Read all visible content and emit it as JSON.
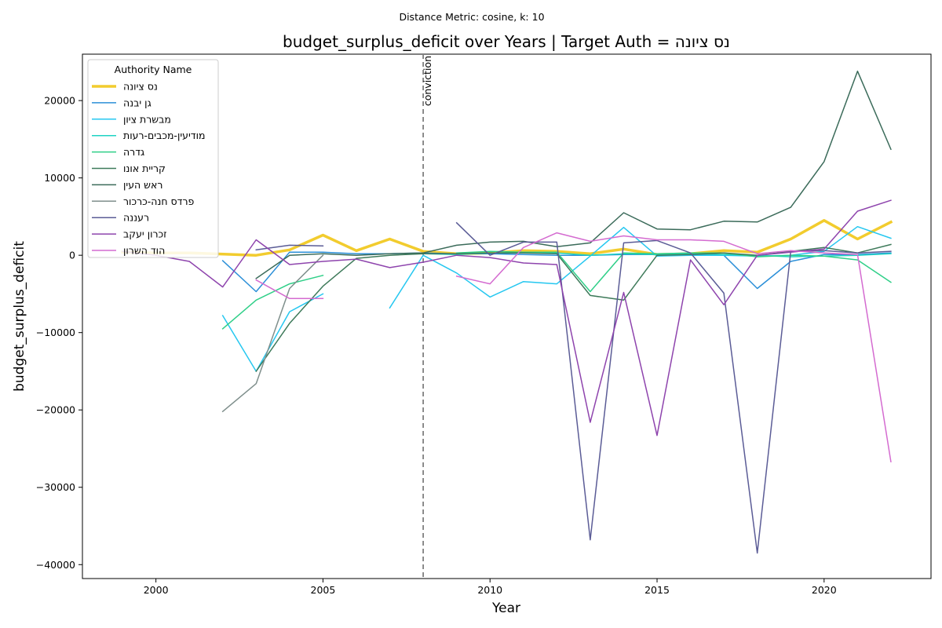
{
  "suptitle": "Distance Metric: cosine, k: 10",
  "chart_data": {
    "type": "line",
    "title": "budget_surplus_deficit over Years | Target Auth = נס ציונה",
    "xlabel": "Year",
    "ylabel": "budget_surplus_deficit",
    "xlim": [
      1997.8,
      2023.2
    ],
    "ylim": [
      -41800,
      26000
    ],
    "xticks": [
      2000,
      2005,
      2010,
      2015,
      2020
    ],
    "yticks": [
      -40000,
      -30000,
      -20000,
      -10000,
      0,
      10000,
      20000
    ],
    "grid": false,
    "legend": {
      "title": "Authority Name",
      "placement": "top-left"
    },
    "annotations": [
      {
        "type": "vline",
        "x": 2008,
        "label": "conviction",
        "style": "dashed",
        "color": "#808080"
      }
    ],
    "series": [
      {
        "name": "נס ציונה",
        "color": "#f2cc2e",
        "width": 3.5,
        "target": true,
        "points": [
          [
            1999,
            400
          ],
          [
            2000,
            300
          ],
          [
            2001,
            300
          ],
          [
            2003,
            0
          ],
          [
            2004,
            700
          ],
          [
            2005,
            2600
          ],
          [
            2006,
            600
          ],
          [
            2007,
            2100
          ],
          [
            2008,
            500
          ],
          [
            2009,
            200
          ],
          [
            2010,
            300
          ],
          [
            2011,
            600
          ],
          [
            2012,
            500
          ],
          [
            2013,
            200
          ],
          [
            2014,
            800
          ],
          [
            2015,
            100
          ],
          [
            2016,
            200
          ],
          [
            2017,
            600
          ],
          [
            2018,
            400
          ],
          [
            2019,
            2100
          ],
          [
            2020,
            4500
          ],
          [
            2021,
            2100
          ],
          [
            2022,
            4300
          ]
        ]
      },
      {
        "name": "גן יבנה",
        "color": "#2b8fd8",
        "width": 1.5,
        "points": [
          [
            2002,
            -700
          ],
          [
            2003,
            -4700
          ],
          [
            2004,
            400
          ],
          [
            2005,
            400
          ],
          [
            2006,
            200
          ],
          [
            2007,
            200
          ],
          [
            2008,
            300
          ],
          [
            2009,
            200
          ],
          [
            2010,
            200
          ],
          [
            2011,
            100
          ],
          [
            2012,
            0
          ],
          [
            2013,
            0
          ],
          [
            2014,
            100
          ],
          [
            2015,
            100
          ],
          [
            2016,
            100
          ],
          [
            2017,
            0
          ],
          [
            2018,
            -4300
          ],
          [
            2019,
            -800
          ],
          [
            2020,
            100
          ],
          [
            2021,
            100
          ],
          [
            2022,
            300
          ]
        ]
      },
      {
        "name": "מבשרת ציון",
        "color": "#25c7f0",
        "width": 1.5,
        "points": [
          [
            2002,
            -7800
          ],
          [
            2003,
            -15000
          ],
          [
            2004,
            -7300
          ],
          [
            2005,
            -5000
          ],
          null,
          [
            2007,
            -6800
          ],
          [
            2008,
            0
          ],
          [
            2009,
            -2300
          ],
          [
            2010,
            -5400
          ],
          [
            2011,
            -3400
          ],
          [
            2012,
            -3700
          ],
          [
            2013,
            -100
          ],
          [
            2014,
            3600
          ],
          [
            2015,
            -100
          ],
          [
            2016,
            0
          ],
          [
            2017,
            0
          ],
          [
            2018,
            -100
          ],
          [
            2019,
            0
          ],
          [
            2020,
            500
          ],
          [
            2021,
            3700
          ],
          [
            2022,
            2200
          ]
        ]
      },
      {
        "name": "מודיעין-מכבים-רעות",
        "color": "#1fd3c4",
        "width": 1.5,
        "points": [
          [
            2008,
            200
          ],
          [
            2009,
            100
          ],
          [
            2010,
            300
          ],
          [
            2011,
            300
          ],
          [
            2012,
            300
          ],
          [
            2013,
            0
          ],
          [
            2014,
            200
          ],
          [
            2015,
            100
          ],
          [
            2016,
            200
          ],
          [
            2017,
            100
          ],
          [
            2018,
            0
          ],
          [
            2019,
            -200
          ],
          [
            2020,
            -100
          ],
          [
            2021,
            0
          ],
          [
            2022,
            200
          ]
        ]
      },
      {
        "name": "גדרה",
        "color": "#2fcf88",
        "width": 1.5,
        "points": [
          [
            2002,
            -9500
          ],
          [
            2003,
            -5800
          ],
          [
            2004,
            -3700
          ],
          [
            2005,
            -2600
          ],
          null,
          [
            2009,
            300
          ],
          [
            2010,
            500
          ],
          [
            2011,
            400
          ],
          [
            2012,
            400
          ],
          [
            2013,
            -4700
          ],
          [
            2014,
            300
          ],
          [
            2015,
            200
          ],
          [
            2016,
            300
          ],
          [
            2017,
            300
          ],
          [
            2018,
            -200
          ],
          [
            2019,
            0
          ],
          [
            2020,
            -100
          ],
          [
            2021,
            -600
          ],
          [
            2022,
            -3500
          ]
        ]
      },
      {
        "name": "קריית אונו",
        "color": "#3e7a5a",
        "width": 1.5,
        "points": [
          [
            2003,
            -15000
          ],
          [
            2004,
            -8800
          ],
          [
            2005,
            -4000
          ],
          [
            2006,
            -400
          ],
          [
            2007,
            0
          ],
          [
            2008,
            200
          ],
          [
            2009,
            200
          ],
          [
            2010,
            300
          ],
          [
            2011,
            300
          ],
          [
            2012,
            200
          ],
          [
            2013,
            -5200
          ],
          [
            2014,
            -5800
          ],
          [
            2015,
            0
          ],
          [
            2016,
            100
          ],
          [
            2017,
            300
          ],
          [
            2018,
            0
          ],
          [
            2019,
            500
          ],
          [
            2020,
            1000
          ],
          [
            2021,
            300
          ],
          [
            2022,
            1400
          ]
        ]
      },
      {
        "name": "ראש העין",
        "color": "#3b6b5a",
        "width": 1.5,
        "points": [
          [
            2003,
            -3000
          ],
          [
            2004,
            0
          ],
          [
            2005,
            200
          ],
          [
            2006,
            0
          ],
          [
            2007,
            200
          ],
          [
            2008,
            300
          ],
          [
            2009,
            1300
          ],
          [
            2010,
            1700
          ],
          [
            2011,
            1800
          ],
          [
            2012,
            1100
          ],
          [
            2013,
            1600
          ],
          [
            2014,
            5500
          ],
          [
            2015,
            3400
          ],
          [
            2016,
            3300
          ],
          [
            2017,
            4400
          ],
          [
            2018,
            4300
          ],
          [
            2019,
            6200
          ],
          [
            2020,
            12100
          ],
          [
            2021,
            23800
          ],
          [
            2022,
            13700
          ]
        ]
      },
      {
        "name": "פרדס חנה-כרכור",
        "color": "#7f8f8c",
        "width": 1.5,
        "points": [
          [
            2002,
            -20200
          ],
          [
            2003,
            -16600
          ],
          [
            2004,
            -4300
          ],
          [
            2005,
            0
          ]
        ]
      },
      {
        "name": "רעננה",
        "color": "#5b5c96",
        "width": 1.5,
        "points": [
          [
            2003,
            700
          ],
          [
            2004,
            1300
          ],
          [
            2005,
            1200
          ],
          null,
          [
            2009,
            4200
          ],
          [
            2010,
            0
          ],
          [
            2011,
            1700
          ],
          [
            2012,
            1700
          ],
          [
            2013,
            -36800
          ],
          [
            2014,
            1600
          ],
          [
            2015,
            1900
          ],
          [
            2016,
            300
          ],
          [
            2017,
            -4900
          ],
          [
            2018,
            -38500
          ],
          [
            2019,
            500
          ],
          [
            2020,
            600
          ],
          [
            2021,
            300
          ],
          [
            2022,
            500
          ]
        ]
      },
      {
        "name": "זכרון יעקב",
        "color": "#8e44ad",
        "width": 1.5,
        "points": [
          [
            1999,
            500
          ],
          [
            2000,
            0
          ],
          [
            2001,
            -800
          ],
          [
            2002,
            -4100
          ],
          [
            2003,
            2000
          ],
          [
            2004,
            -1200
          ],
          [
            2005,
            -800
          ],
          [
            2006,
            -500
          ],
          [
            2007,
            -1600
          ],
          [
            2008,
            -900
          ],
          [
            2009,
            0
          ],
          [
            2010,
            -300
          ],
          [
            2011,
            -1000
          ],
          [
            2012,
            -1200
          ],
          [
            2013,
            -21600
          ],
          [
            2014,
            -4800
          ],
          [
            2015,
            -23300
          ],
          [
            2016,
            -600
          ],
          [
            2017,
            -6400
          ],
          [
            2018,
            0
          ],
          [
            2019,
            400
          ],
          [
            2020,
            800
          ],
          [
            2021,
            5700
          ],
          [
            2022,
            7100
          ]
        ]
      },
      {
        "name": "הוד השרון",
        "color": "#d46bd0",
        "width": 1.5,
        "points": [
          [
            2003,
            -3200
          ],
          [
            2004,
            -5600
          ],
          [
            2005,
            -5600
          ],
          null,
          [
            2009,
            -2700
          ],
          [
            2010,
            -3700
          ],
          [
            2011,
            1000
          ],
          [
            2012,
            2900
          ],
          [
            2013,
            1800
          ],
          [
            2014,
            2500
          ],
          [
            2015,
            2000
          ],
          [
            2016,
            2000
          ],
          [
            2017,
            1800
          ],
          [
            2018,
            200
          ],
          [
            2019,
            600
          ],
          [
            2020,
            300
          ],
          [
            2021,
            100
          ],
          [
            2022,
            -26700
          ]
        ]
      }
    ]
  }
}
